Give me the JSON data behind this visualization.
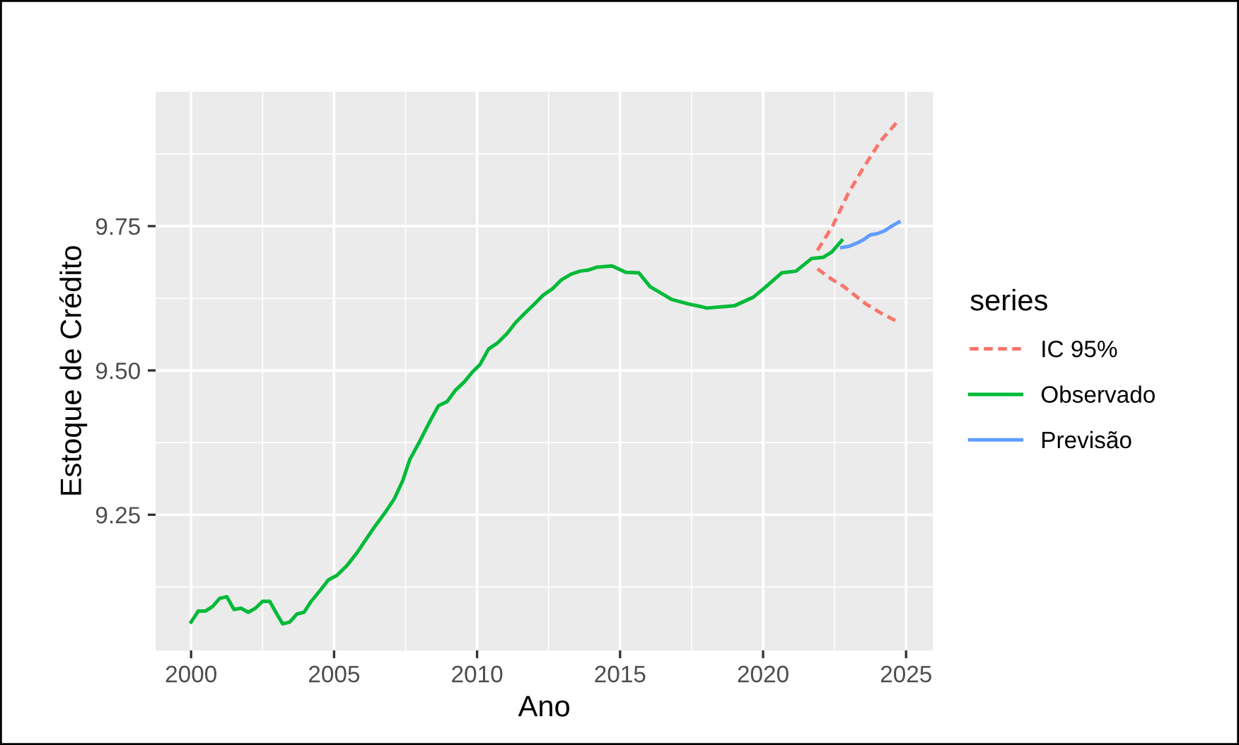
{
  "chart_data": {
    "type": "line",
    "xlabel": "Ano",
    "ylabel": "Estoque de Crédito",
    "legend_title": "series",
    "series": [
      {
        "name": "IC 95%",
        "color": "#f8766d",
        "line_style": "dashed",
        "x": [
          2021.9,
          2022.43,
          2022.97,
          2023.47,
          2024.1,
          2024.75
        ],
        "values": [
          9.708,
          9.75,
          9.806,
          9.848,
          9.897,
          9.934
        ]
      },
      {
        "color": "#f8766d",
        "line_style": "dashed",
        "x": [
          2021.9,
          2022.4,
          2022.83,
          2023.6,
          2024.1,
          2024.75
        ],
        "values": [
          9.676,
          9.658,
          9.645,
          9.615,
          9.6,
          9.583
        ]
      },
      {
        "name": "Observado",
        "color": "#00ba38",
        "line_style": "solid",
        "x": [
          2000,
          2000.25,
          2000.5,
          2000.75,
          2001.0,
          2001.25,
          2001.5,
          2001.75,
          2002.0,
          2002.25,
          2002.5,
          2002.75,
          2003.0,
          2003.2,
          2003.45,
          2003.7,
          2003.95,
          2004.2,
          2004.5,
          2004.8,
          2005.1,
          2005.45,
          2005.8,
          2006.1,
          2006.4,
          2006.8,
          2007.1,
          2007.4,
          2007.65,
          2007.95,
          2008.3,
          2008.65,
          2008.95,
          2009.25,
          2009.55,
          2009.85,
          2010.1,
          2010.4,
          2010.7,
          2011.05,
          2011.35,
          2011.65,
          2012.0,
          2012.3,
          2012.65,
          2012.95,
          2013.3,
          2013.6,
          2013.9,
          2014.2,
          2014.72,
          2015.2,
          2015.66,
          2016.05,
          2016.4,
          2016.8,
          2017.4,
          2017.8,
          2018.03,
          2018.5,
          2019.0,
          2019.66,
          2020.1,
          2020.65,
          2021.15,
          2021.7,
          2022.1,
          2022.4,
          2022.75
        ],
        "values": [
          9.064,
          9.083,
          9.083,
          9.091,
          9.105,
          9.108,
          9.086,
          9.088,
          9.081,
          9.088,
          9.1,
          9.1,
          9.078,
          9.061,
          9.064,
          9.078,
          9.081,
          9.1,
          9.118,
          9.137,
          9.145,
          9.162,
          9.184,
          9.206,
          9.228,
          9.255,
          9.277,
          9.309,
          9.346,
          9.373,
          9.407,
          9.439,
          9.446,
          9.466,
          9.48,
          9.498,
          9.51,
          9.537,
          9.547,
          9.564,
          9.583,
          9.598,
          9.615,
          9.63,
          9.642,
          9.657,
          9.667,
          9.672,
          9.674,
          9.679,
          9.681,
          9.67,
          9.669,
          9.645,
          9.635,
          9.623,
          9.615,
          9.611,
          9.608,
          9.61,
          9.612,
          9.627,
          9.645,
          9.669,
          9.672,
          9.694,
          9.696,
          9.705,
          9.725
        ]
      },
      {
        "name": "Previsão",
        "color": "#619cff",
        "line_style": "solid",
        "x": [
          2022.75,
          2023.0,
          2023.25,
          2023.5,
          2023.75,
          2024.0,
          2024.25,
          2024.5,
          2024.75
        ],
        "values": [
          9.713,
          9.715,
          9.72,
          9.726,
          9.735,
          9.737,
          9.742,
          9.75,
          9.757
        ]
      }
    ],
    "xlim": [
      1998.76,
      2025.94
    ],
    "ylim": [
      9.015,
      9.983
    ],
    "xticks": [
      2000,
      2005,
      2010,
      2015,
      2020,
      2025
    ],
    "yticks": [
      {
        "value": 9.25,
        "label": "9.25"
      },
      {
        "value": 9.5,
        "label": "9.50"
      },
      {
        "value": 9.75,
        "label": "9.75"
      }
    ],
    "grid": true,
    "legend": "right",
    "marker": "none"
  }
}
